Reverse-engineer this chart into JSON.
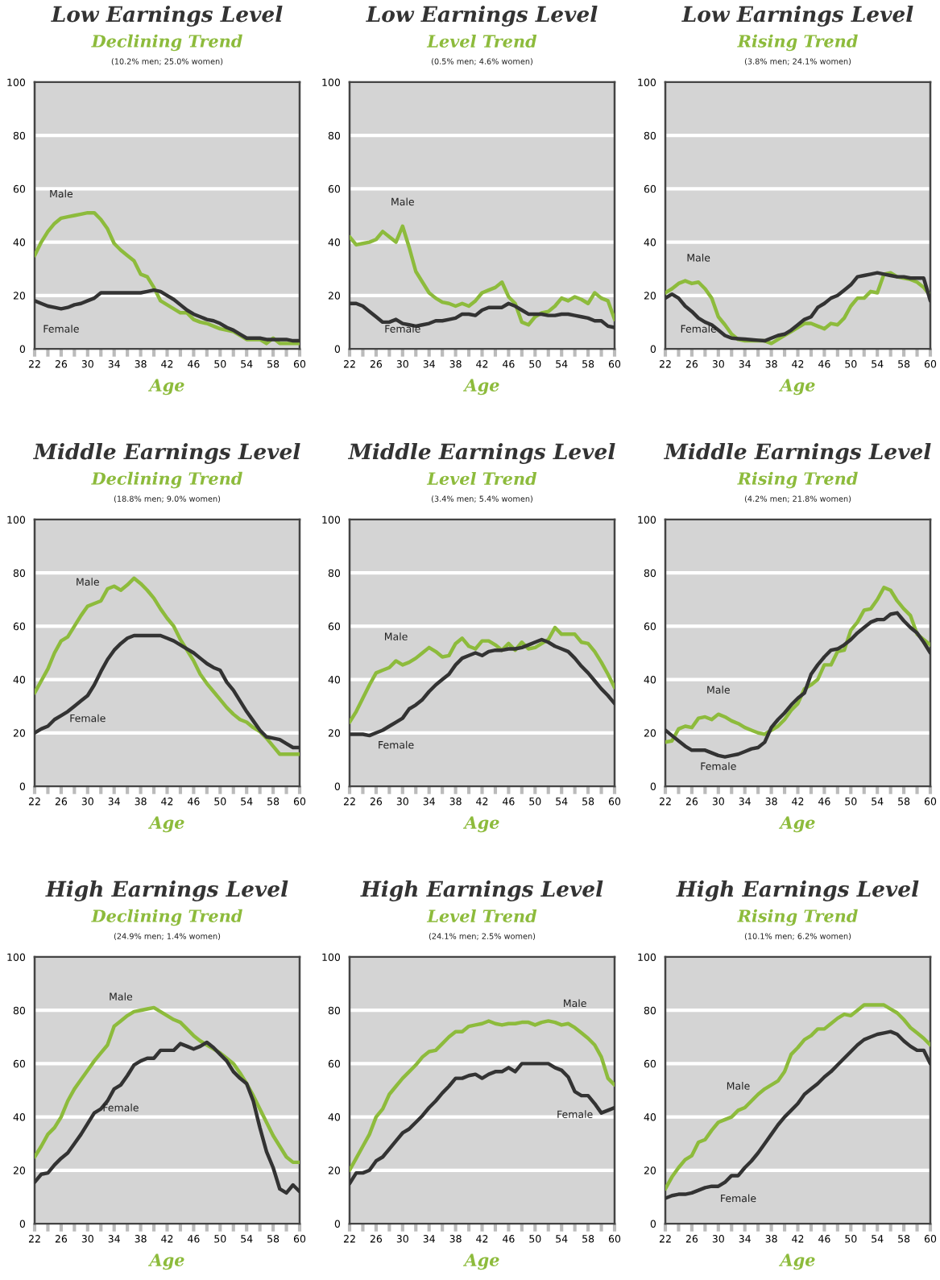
{
  "chart_data": [
    {
      "type": "line",
      "title": "Low Earnings Level",
      "subtitle": "Declining Trend",
      "annotations": [
        "(10.2% men; 25.0% women)"
      ],
      "xlabel": "Age",
      "categories": [
        "22",
        null,
        null,
        null,
        "26",
        null,
        null,
        null,
        "30",
        null,
        null,
        null,
        "34",
        null,
        null,
        null,
        "38",
        null,
        null,
        null,
        "42",
        null,
        null,
        null,
        "46",
        null,
        null,
        null,
        "50",
        null,
        null,
        null,
        "54",
        null,
        null,
        null,
        "58",
        null,
        null,
        null,
        "60"
      ],
      "ylim": [
        0,
        100
      ],
      "yticks": [
        0,
        20,
        40,
        60,
        80,
        100
      ],
      "grid": "y",
      "series": [
        {
          "name": "Male",
          "color": "#8dbb3c",
          "values": [
            35,
            40,
            44,
            47,
            49,
            49.5,
            50,
            50.5,
            51,
            51,
            48.5,
            45,
            39.5,
            37,
            35,
            33,
            28,
            27,
            23,
            18,
            16.5,
            15,
            13.5,
            13.5,
            11,
            10,
            9.5,
            8.5,
            7.5,
            7,
            6.5,
            5,
            3.5,
            3.5,
            3.5,
            2,
            4,
            2,
            2,
            2,
            2
          ]
        },
        {
          "name": "Female",
          "color": "#333333",
          "values": [
            18,
            17,
            16,
            15.5,
            15,
            15.5,
            16.5,
            17,
            18,
            19,
            21,
            21,
            21,
            21,
            21,
            21,
            21,
            21.5,
            22,
            21.5,
            20,
            18.5,
            16.5,
            14.5,
            13,
            12,
            11,
            10.5,
            9.5,
            8,
            7,
            5.5,
            4,
            4,
            4,
            3.5,
            3.5,
            3.5,
            3.5,
            3,
            3
          ]
        }
      ]
    },
    {
      "type": "line",
      "title": "Low Earnings Level",
      "subtitle": "Level Trend",
      "annotations": [
        "(0.5% men; 4.6% women)"
      ],
      "xlabel": "Age",
      "categories": [
        "22",
        null,
        null,
        null,
        "26",
        null,
        null,
        null,
        "30",
        null,
        null,
        null,
        "34",
        null,
        null,
        null,
        "38",
        null,
        null,
        null,
        "42",
        null,
        null,
        null,
        "46",
        null,
        null,
        null,
        "50",
        null,
        null,
        null,
        "54",
        null,
        null,
        null,
        "58",
        null,
        null,
        null,
        "60"
      ],
      "ylim": [
        0,
        100
      ],
      "yticks": [
        0,
        20,
        40,
        60,
        80,
        100
      ],
      "grid": "y",
      "series": [
        {
          "name": "Male",
          "color": "#8dbb3c",
          "values": [
            42,
            39,
            39.5,
            40,
            41,
            44,
            42,
            40,
            46,
            38,
            29,
            25,
            21,
            19,
            17.5,
            17,
            16,
            17,
            16,
            18,
            21,
            22,
            23,
            25,
            19.5,
            17,
            10,
            9,
            12,
            13.5,
            14,
            16,
            19,
            18,
            19.5,
            18.5,
            17,
            21,
            19,
            18,
            11
          ]
        },
        {
          "name": "Female",
          "color": "#333333",
          "values": [
            17,
            17,
            16,
            14,
            12,
            10,
            10,
            11,
            9.5,
            9,
            8.5,
            9,
            9.5,
            10.5,
            10.5,
            11,
            11.5,
            13,
            13,
            12.5,
            14.5,
            15.5,
            15.5,
            15.5,
            17,
            16,
            14.5,
            13,
            13,
            13,
            12.5,
            12.5,
            13,
            13,
            12.5,
            12,
            11.5,
            10.5,
            10.5,
            8.5,
            8
          ]
        }
      ]
    },
    {
      "type": "line",
      "title": "Low Earnings Level",
      "subtitle": "Rising Trend",
      "annotations": [
        "(3.8% men; 24.1% women)"
      ],
      "xlabel": "Age",
      "categories": [
        "22",
        null,
        null,
        null,
        "26",
        null,
        null,
        null,
        "30",
        null,
        null,
        null,
        "34",
        null,
        null,
        null,
        "38",
        null,
        null,
        null,
        "42",
        null,
        null,
        null,
        "46",
        null,
        null,
        null,
        "50",
        null,
        null,
        null,
        "54",
        null,
        null,
        null,
        "58",
        null,
        null,
        null,
        "60"
      ],
      "ylim": [
        0,
        100
      ],
      "yticks": [
        0,
        20,
        40,
        60,
        80,
        100
      ],
      "grid": "y",
      "series": [
        {
          "name": "Male",
          "color": "#8dbb3c",
          "values": [
            21,
            22.5,
            24.5,
            25.5,
            24.5,
            25,
            22.5,
            19,
            12,
            9,
            5.5,
            3.5,
            3,
            3,
            3,
            3,
            2,
            3.5,
            5,
            6.5,
            8,
            9.5,
            9.5,
            8.5,
            7.5,
            9.5,
            9,
            11.5,
            16,
            19,
            19,
            21.5,
            21,
            28,
            28.5,
            27,
            26.5,
            26,
            25,
            23,
            20
          ]
        },
        {
          "name": "Female",
          "color": "#333333",
          "values": [
            19,
            20.5,
            19,
            16,
            14,
            11.5,
            10,
            9,
            7,
            5,
            4,
            3.8,
            3.6,
            3.4,
            3.2,
            3,
            4,
            5,
            5.5,
            7,
            9,
            11,
            12,
            15.5,
            17,
            19,
            20,
            22,
            24,
            27,
            27.5,
            28,
            28.5,
            28,
            27.5,
            27,
            27,
            26.5,
            26.5,
            26.5,
            18
          ]
        }
      ]
    },
    {
      "type": "line",
      "title": "Middle Earnings Level",
      "subtitle": "Declining Trend",
      "annotations": [
        "(18.8% men; 9.0% women)"
      ],
      "xlabel": "Age",
      "categories": [
        "22",
        null,
        null,
        null,
        "26",
        null,
        null,
        null,
        "30",
        null,
        null,
        null,
        "34",
        null,
        null,
        null,
        "38",
        null,
        null,
        null,
        "42",
        null,
        null,
        null,
        "46",
        null,
        null,
        null,
        "50",
        null,
        null,
        null,
        "54",
        null,
        null,
        null,
        "58",
        null,
        null,
        null,
        "60"
      ],
      "ylim": [
        0,
        100
      ],
      "yticks": [
        0,
        20,
        40,
        60,
        80,
        100
      ],
      "grid": "y",
      "series": [
        {
          "name": "Male",
          "color": "#8dbb3c",
          "values": [
            35,
            39.5,
            44,
            50,
            54.5,
            56,
            60,
            64,
            67.5,
            68.5,
            69.5,
            74,
            75,
            73.5,
            75.5,
            78,
            76,
            73.5,
            70.5,
            66.5,
            63,
            60,
            55,
            51,
            47,
            42,
            38.5,
            35.5,
            32.5,
            29.5,
            27,
            25,
            24,
            22,
            20.5,
            18,
            15,
            12,
            12,
            12,
            12
          ]
        },
        {
          "name": "Female",
          "color": "#333333",
          "values": [
            20,
            21.5,
            22.5,
            25,
            26.5,
            28,
            30,
            32,
            34,
            38,
            43,
            47.5,
            51,
            53.5,
            55.5,
            56.5,
            56.5,
            56.5,
            56.5,
            56.5,
            55.5,
            54.5,
            53,
            51.5,
            50,
            48,
            46,
            44.5,
            43.5,
            39,
            36,
            32,
            28,
            24.5,
            21,
            18.5,
            18,
            17.5,
            16,
            14.5,
            14.5
          ]
        }
      ]
    },
    {
      "type": "line",
      "title": "Middle Earnings Level",
      "subtitle": "Level Trend",
      "annotations": [
        "(3.4% men; 5.4% women)"
      ],
      "xlabel": "Age",
      "categories": [
        "22",
        null,
        null,
        null,
        "26",
        null,
        null,
        null,
        "30",
        null,
        null,
        null,
        "34",
        null,
        null,
        null,
        "38",
        null,
        null,
        null,
        "42",
        null,
        null,
        null,
        "46",
        null,
        null,
        null,
        "50",
        null,
        null,
        null,
        "54",
        null,
        null,
        null,
        "58",
        null,
        null,
        null,
        "60"
      ],
      "ylim": [
        0,
        100
      ],
      "yticks": [
        0,
        20,
        40,
        60,
        80,
        100
      ],
      "grid": "y",
      "series": [
        {
          "name": "Male",
          "color": "#8dbb3c",
          "values": [
            24,
            28,
            33,
            38,
            42.5,
            43.5,
            44.5,
            47,
            45.5,
            46.5,
            48,
            50,
            52,
            50.5,
            48.5,
            49,
            53.5,
            55.5,
            52.5,
            51.5,
            54.5,
            54.5,
            53,
            51,
            53.5,
            51,
            54,
            51.5,
            52,
            53.5,
            55,
            59.5,
            57,
            57,
            57,
            54,
            53.5,
            50.5,
            46.5,
            42,
            37
          ]
        },
        {
          "name": "Female",
          "color": "#333333",
          "values": [
            19.5,
            19.5,
            19.5,
            19,
            20,
            21,
            22.5,
            24,
            25.5,
            29,
            30.5,
            32.5,
            35.5,
            38,
            40,
            42,
            45.5,
            48,
            49,
            50,
            49,
            50.5,
            51,
            51,
            51.5,
            51.5,
            52,
            53,
            54,
            55,
            54,
            52.5,
            51.5,
            50.5,
            48,
            45,
            42.5,
            39.5,
            36.5,
            34,
            31
          ]
        }
      ]
    },
    {
      "type": "line",
      "title": "Middle Earnings Level",
      "subtitle": "Rising Trend",
      "annotations": [
        "(4.2% men; 21.8% women)"
      ],
      "xlabel": "Age",
      "categories": [
        "22",
        null,
        null,
        null,
        "26",
        null,
        null,
        null,
        "30",
        null,
        null,
        null,
        "34",
        null,
        null,
        null,
        "38",
        null,
        null,
        null,
        "42",
        null,
        null,
        null,
        "46",
        null,
        null,
        null,
        "50",
        null,
        null,
        null,
        "54",
        null,
        null,
        null,
        "58",
        null,
        null,
        null,
        "60"
      ],
      "ylim": [
        0,
        100
      ],
      "yticks": [
        0,
        20,
        40,
        60,
        80,
        100
      ],
      "grid": "y",
      "series": [
        {
          "name": "Male",
          "color": "#8dbb3c",
          "values": [
            16.5,
            17,
            21.5,
            22.5,
            22,
            25.5,
            26,
            25,
            27,
            26,
            24.5,
            23.5,
            22,
            21,
            20,
            19.5,
            21,
            22.5,
            25,
            28.5,
            31,
            36.5,
            38,
            40,
            45.5,
            45.5,
            50.5,
            51,
            58.5,
            61.5,
            66,
            66.5,
            70,
            74.5,
            73.5,
            69.5,
            66.5,
            64,
            57,
            55,
            53
          ]
        },
        {
          "name": "Female",
          "color": "#333333",
          "values": [
            21,
            19,
            17,
            15,
            13.5,
            13.5,
            13.5,
            12.5,
            11.5,
            11,
            11.5,
            12,
            13,
            14,
            14.5,
            16.5,
            22,
            25,
            27.5,
            30.5,
            33,
            35,
            42,
            45.5,
            48.5,
            51,
            51.5,
            53,
            55,
            57.5,
            59.5,
            61.5,
            62.5,
            62.5,
            64.5,
            65,
            62,
            59.5,
            57.5,
            54,
            50
          ]
        }
      ]
    },
    {
      "type": "line",
      "title": "High Earnings Level",
      "subtitle": "Declining Trend",
      "annotations": [
        "(24.9% men; 1.4% women)"
      ],
      "xlabel": "Age",
      "categories": [
        "22",
        null,
        null,
        null,
        "26",
        null,
        null,
        null,
        "30",
        null,
        null,
        null,
        "34",
        null,
        null,
        null,
        "38",
        null,
        null,
        null,
        "42",
        null,
        null,
        null,
        "46",
        null,
        null,
        null,
        "50",
        null,
        null,
        null,
        "54",
        null,
        null,
        null,
        "58",
        null,
        null,
        null,
        "60"
      ],
      "ylim": [
        0,
        100
      ],
      "yticks": [
        0,
        20,
        40,
        60,
        80,
        100
      ],
      "grid": "y",
      "series": [
        {
          "name": "Male",
          "color": "#8dbb3c",
          "values": [
            25,
            29,
            33.5,
            36,
            40,
            46,
            50.5,
            54,
            57.5,
            61,
            64,
            67,
            74,
            76,
            78,
            79.5,
            80,
            80.5,
            81,
            79.5,
            78,
            76.5,
            75.5,
            73,
            70.5,
            68.5,
            67,
            65.5,
            64,
            62,
            60,
            56.5,
            52.5,
            48,
            43,
            38,
            33,
            29,
            25,
            23,
            23
          ]
        },
        {
          "name": "Female",
          "color": "#333333",
          "values": [
            15.5,
            18.5,
            19,
            22,
            24.5,
            26.5,
            30,
            33.5,
            37.5,
            41.5,
            43,
            46,
            50.5,
            52,
            55.5,
            59.5,
            61,
            62,
            62,
            65,
            65,
            65,
            67.5,
            66.5,
            65.5,
            66.5,
            68,
            66,
            63.5,
            61,
            57,
            54.5,
            52.5,
            46,
            36,
            27,
            21,
            13,
            11.5,
            14.5,
            12
          ]
        }
      ]
    },
    {
      "type": "line",
      "title": "High Earnings Level",
      "subtitle": "Level Trend",
      "annotations": [
        "(24.1% men; 2.5% women)"
      ],
      "xlabel": "Age",
      "categories": [
        "22",
        null,
        null,
        null,
        "26",
        null,
        null,
        null,
        "30",
        null,
        null,
        null,
        "34",
        null,
        null,
        null,
        "38",
        null,
        null,
        null,
        "42",
        null,
        null,
        null,
        "46",
        null,
        null,
        null,
        "50",
        null,
        null,
        null,
        "54",
        null,
        null,
        null,
        "58",
        null,
        null,
        null,
        "60"
      ],
      "ylim": [
        0,
        100
      ],
      "yticks": [
        0,
        20,
        40,
        60,
        80,
        100
      ],
      "grid": "y",
      "series": [
        {
          "name": "Male",
          "color": "#8dbb3c",
          "values": [
            20,
            24.5,
            29,
            33.5,
            40,
            43,
            48.5,
            51.5,
            54.5,
            57,
            59.5,
            62.5,
            64.5,
            65,
            67.5,
            70,
            72,
            72,
            74,
            74.5,
            75,
            76,
            75,
            74.5,
            75,
            75,
            75.5,
            75.5,
            74.5,
            75.5,
            76,
            75.5,
            74.5,
            75,
            73.5,
            71.5,
            69.5,
            67,
            62.5,
            54.5,
            52
          ]
        },
        {
          "name": "Female",
          "color": "#333333",
          "values": [
            15,
            19,
            19,
            20,
            23.5,
            25,
            28,
            31,
            34,
            35.5,
            38,
            40.5,
            43.5,
            46,
            49,
            51.5,
            54.5,
            54.5,
            55.5,
            56,
            54.5,
            56,
            57,
            57,
            58.5,
            57,
            60,
            60,
            60,
            60,
            60,
            58.5,
            57.5,
            55,
            49.5,
            48,
            48,
            45,
            41.5,
            42.5,
            43.5
          ]
        }
      ]
    },
    {
      "type": "line",
      "title": "High Earnings Level",
      "subtitle": "Rising Trend",
      "annotations": [
        "(10.1% men; 6.2% women)"
      ],
      "xlabel": "Age",
      "categories": [
        "22",
        null,
        null,
        null,
        "26",
        null,
        null,
        null,
        "30",
        null,
        null,
        null,
        "34",
        null,
        null,
        null,
        "38",
        null,
        null,
        null,
        "42",
        null,
        null,
        null,
        "46",
        null,
        null,
        null,
        "50",
        null,
        null,
        null,
        "54",
        null,
        null,
        null,
        "58",
        null,
        null,
        null,
        "60"
      ],
      "ylim": [
        0,
        100
      ],
      "yticks": [
        0,
        20,
        40,
        60,
        80,
        100
      ],
      "grid": "y",
      "series": [
        {
          "name": "Male",
          "color": "#8dbb3c",
          "values": [
            13,
            17.5,
            21,
            24,
            25.5,
            30.5,
            31.5,
            35,
            38,
            39,
            40,
            42.5,
            43.5,
            46,
            48.5,
            50.5,
            52,
            53.5,
            57,
            63.5,
            66,
            69,
            70.5,
            73,
            73,
            75,
            77,
            78.5,
            78,
            80,
            82,
            82,
            82,
            82,
            80.5,
            79,
            76.5,
            73.5,
            71.5,
            69.5,
            67
          ]
        },
        {
          "name": "Female",
          "color": "#333333",
          "values": [
            9.5,
            10.5,
            11,
            11,
            11.5,
            12.5,
            13.5,
            14,
            14,
            15.5,
            18,
            18,
            21,
            23.5,
            26.5,
            30,
            33.5,
            37,
            40,
            42.5,
            45,
            48.5,
            50.5,
            52.5,
            55,
            57,
            59.5,
            62,
            64.5,
            67,
            69,
            70,
            71,
            71.5,
            72,
            71,
            68.5,
            66.5,
            65,
            65,
            60
          ]
        }
      ]
    }
  ]
}
